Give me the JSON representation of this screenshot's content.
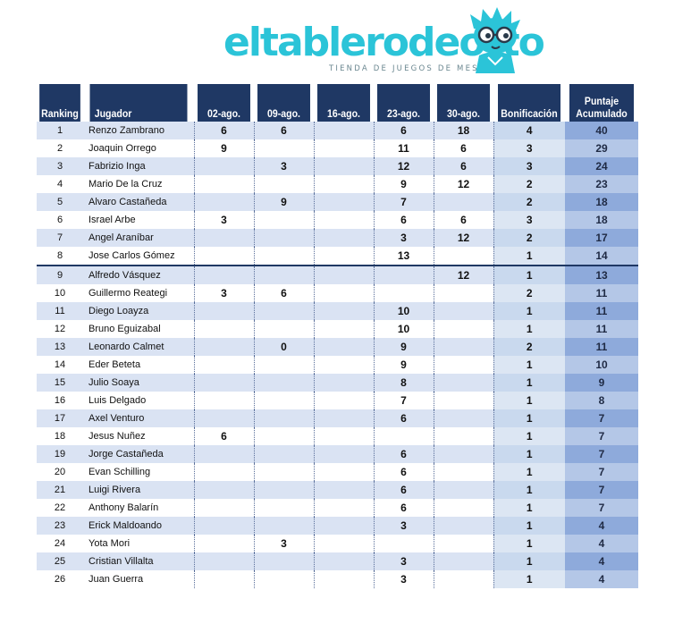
{
  "brand": {
    "word_part1": "eltablerode",
    "word_part2": "otto",
    "tagline": "TIENDA DE JUEGOS DE MESA"
  },
  "table": {
    "headers": {
      "ranking": "Ranking",
      "player": "Jugador",
      "dates": [
        "02-ago.",
        "09-ago.",
        "16-ago.",
        "23-ago.",
        "30-ago."
      ],
      "bonus": "Bonificación",
      "total_line1": "Puntaje",
      "total_line2": "Acumulado"
    },
    "rows": [
      {
        "rank": "1",
        "player": "Renzo Zambrano",
        "scores": [
          "6",
          "6",
          "",
          "6",
          "18"
        ],
        "bonus": "4",
        "total": "40"
      },
      {
        "rank": "2",
        "player": "Joaquin Orrego",
        "scores": [
          "9",
          "",
          "",
          "11",
          "6"
        ],
        "bonus": "3",
        "total": "29"
      },
      {
        "rank": "3",
        "player": "Fabrizio Inga",
        "scores": [
          "",
          "3",
          "",
          "12",
          "6"
        ],
        "bonus": "3",
        "total": "24"
      },
      {
        "rank": "4",
        "player": "Mario De la Cruz",
        "scores": [
          "",
          "",
          "",
          "9",
          "12"
        ],
        "bonus": "2",
        "total": "23"
      },
      {
        "rank": "5",
        "player": "Alvaro Castañeda",
        "scores": [
          "",
          "9",
          "",
          "7",
          ""
        ],
        "bonus": "2",
        "total": "18"
      },
      {
        "rank": "6",
        "player": "Israel Arbe",
        "scores": [
          "3",
          "",
          "",
          "6",
          "6"
        ],
        "bonus": "3",
        "total": "18"
      },
      {
        "rank": "7",
        "player": "Angel Araníbar",
        "scores": [
          "",
          "",
          "",
          "3",
          "12"
        ],
        "bonus": "2",
        "total": "17"
      },
      {
        "rank": "8",
        "player": "Jose Carlos Gómez",
        "scores": [
          "",
          "",
          "",
          "13",
          ""
        ],
        "bonus": "1",
        "total": "14"
      },
      {
        "rank": "9",
        "player": "Alfredo Vásquez",
        "scores": [
          "",
          "",
          "",
          "",
          "12"
        ],
        "bonus": "1",
        "total": "13"
      },
      {
        "rank": "10",
        "player": "Guillermo Reategi",
        "scores": [
          "3",
          "6",
          "",
          "",
          ""
        ],
        "bonus": "2",
        "total": "11"
      },
      {
        "rank": "11",
        "player": "Diego Loayza",
        "scores": [
          "",
          "",
          "",
          "10",
          ""
        ],
        "bonus": "1",
        "total": "11"
      },
      {
        "rank": "12",
        "player": "Bruno Eguizabal",
        "scores": [
          "",
          "",
          "",
          "10",
          ""
        ],
        "bonus": "1",
        "total": "11"
      },
      {
        "rank": "13",
        "player": "Leonardo Calmet",
        "scores": [
          "",
          "0",
          "",
          "9",
          ""
        ],
        "bonus": "2",
        "total": "11"
      },
      {
        "rank": "14",
        "player": "Eder Beteta",
        "scores": [
          "",
          "",
          "",
          "9",
          ""
        ],
        "bonus": "1",
        "total": "10"
      },
      {
        "rank": "15",
        "player": "Julio Soaya",
        "scores": [
          "",
          "",
          "",
          "8",
          ""
        ],
        "bonus": "1",
        "total": "9"
      },
      {
        "rank": "16",
        "player": "Luis Delgado",
        "scores": [
          "",
          "",
          "",
          "7",
          ""
        ],
        "bonus": "1",
        "total": "8"
      },
      {
        "rank": "17",
        "player": "Axel Venturo",
        "scores": [
          "",
          "",
          "",
          "6",
          ""
        ],
        "bonus": "1",
        "total": "7"
      },
      {
        "rank": "18",
        "player": "Jesus Nuñez",
        "scores": [
          "6",
          "",
          "",
          "",
          ""
        ],
        "bonus": "1",
        "total": "7"
      },
      {
        "rank": "19",
        "player": "Jorge Castañeda",
        "scores": [
          "",
          "",
          "",
          "6",
          ""
        ],
        "bonus": "1",
        "total": "7"
      },
      {
        "rank": "20",
        "player": "Evan Schilling",
        "scores": [
          "",
          "",
          "",
          "6",
          ""
        ],
        "bonus": "1",
        "total": "7"
      },
      {
        "rank": "21",
        "player": "Luigi Rivera",
        "scores": [
          "",
          "",
          "",
          "6",
          ""
        ],
        "bonus": "1",
        "total": "7"
      },
      {
        "rank": "22",
        "player": "Anthony Balarín",
        "scores": [
          "",
          "",
          "",
          "6",
          ""
        ],
        "bonus": "1",
        "total": "7"
      },
      {
        "rank": "23",
        "player": "Erick Maldoando",
        "scores": [
          "",
          "",
          "",
          "3",
          ""
        ],
        "bonus": "1",
        "total": "4"
      },
      {
        "rank": "24",
        "player": "Yota Mori",
        "scores": [
          "",
          "3",
          "",
          "",
          ""
        ],
        "bonus": "1",
        "total": "4"
      },
      {
        "rank": "25",
        "player": "Cristian Villalta",
        "scores": [
          "",
          "",
          "",
          "3",
          ""
        ],
        "bonus": "1",
        "total": "4"
      },
      {
        "rank": "26",
        "player": "Juan Guerra",
        "scores": [
          "",
          "",
          "",
          "3",
          ""
        ],
        "bonus": "1",
        "total": "4"
      }
    ]
  },
  "colors": {
    "header_bg": "#1f3864",
    "row_band": "#dae3f3",
    "total_col": "#8eaadb",
    "brand": "#2bc4d8"
  }
}
